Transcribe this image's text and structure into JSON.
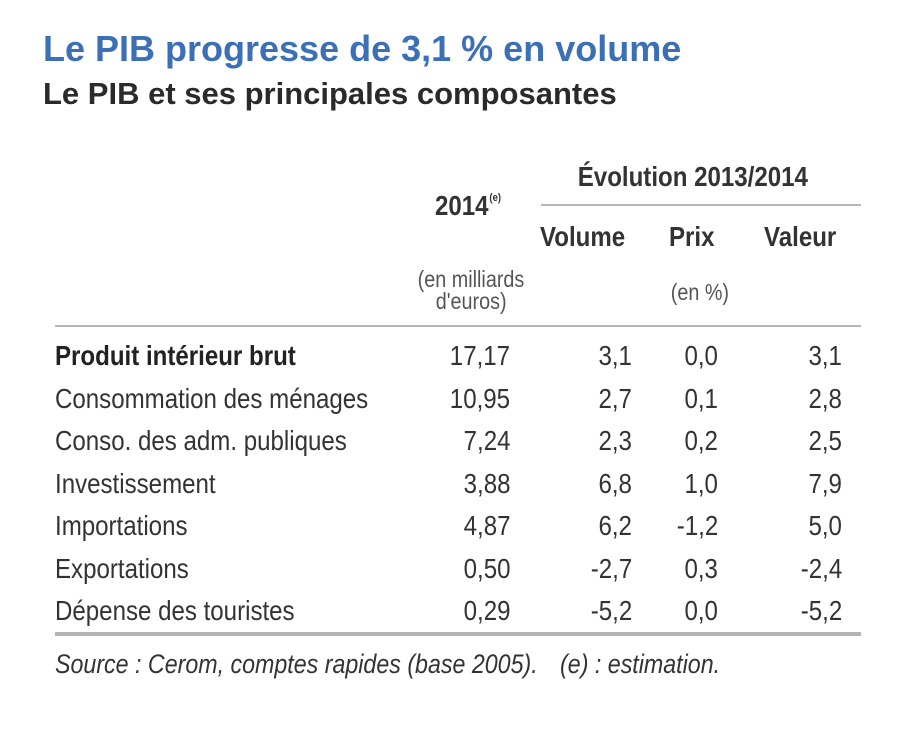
{
  "title": "Le PIB progresse de 3,1 % en volume",
  "subtitle": "Le PIB et ses principales composantes",
  "table": {
    "col_year": "2014",
    "col_year_note": "(e)",
    "col_year_units_line1": "(en milliards",
    "col_year_units_line2": "d'euros)",
    "group_header": "Évolution 2013/2014",
    "col_volume": "Volume",
    "col_prix": "Prix",
    "col_valeur": "Valeur",
    "group_units": "(en %)",
    "rows": [
      {
        "label": "Produit intérieur brut",
        "value": "17,17",
        "volume": "3,1",
        "prix": "0,0",
        "valeur": "3,1"
      },
      {
        "label": "Consommation des ménages",
        "value": "10,95",
        "volume": "2,7",
        "prix": "0,1",
        "valeur": "2,8"
      },
      {
        "label": "Conso. des adm. publiques",
        "value": "7,24",
        "volume": "2,3",
        "prix": "0,2",
        "valeur": "2,5"
      },
      {
        "label": "Investissement",
        "value": "3,88",
        "volume": "6,8",
        "prix": "1,0",
        "valeur": "7,9"
      },
      {
        "label": "Importations",
        "value": "4,87",
        "volume": "6,2",
        "prix": "-1,2",
        "valeur": "5,0"
      },
      {
        "label": "Exportations",
        "value": "0,50",
        "volume": "-2,7",
        "prix": "0,3",
        "valeur": "-2,4"
      },
      {
        "label": "Dépense des touristes",
        "value": "0,29",
        "volume": "-5,2",
        "prix": "0,0",
        "valeur": "-5,2"
      }
    ]
  },
  "source": "Source : Cerom, comptes rapides (base 2005).",
  "note": "(e) : estimation."
}
